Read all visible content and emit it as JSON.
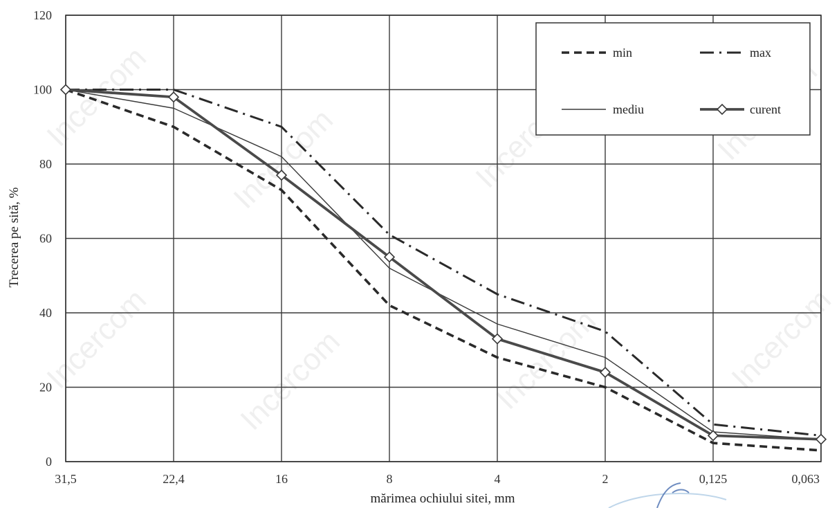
{
  "chart_data": {
    "type": "line",
    "xlabel": "mărimea ochiului sitei, mm",
    "ylabel": "Trecerea pe sită, %",
    "categories": [
      "31,5",
      "22,4",
      "16",
      "8",
      "4",
      "2",
      "0,125",
      "0,063"
    ],
    "ylim": [
      0,
      120
    ],
    "yticks": [
      "0",
      "20",
      "40",
      "60",
      "80",
      "100",
      "120"
    ],
    "grid": true,
    "legend_position": "top-right",
    "series": [
      {
        "name": "min",
        "values": [
          100,
          90,
          73,
          42,
          28,
          20,
          5,
          3
        ],
        "color": "#2a2a2a",
        "style": "dashed"
      },
      {
        "name": "max",
        "values": [
          100,
          100,
          90,
          61,
          45,
          35,
          10,
          7
        ],
        "color": "#2a2a2a",
        "style": "dashdot"
      },
      {
        "name": "mediu",
        "values": [
          100,
          95,
          82,
          52,
          37,
          28,
          8,
          6
        ],
        "color": "#3a3a3a",
        "style": "thin"
      },
      {
        "name": "curent",
        "values": [
          100,
          98,
          77,
          55,
          33,
          24,
          7,
          6
        ],
        "color": "#4a4a4a",
        "style": "thick-diamond"
      }
    ]
  },
  "watermark_text": "Incercom"
}
